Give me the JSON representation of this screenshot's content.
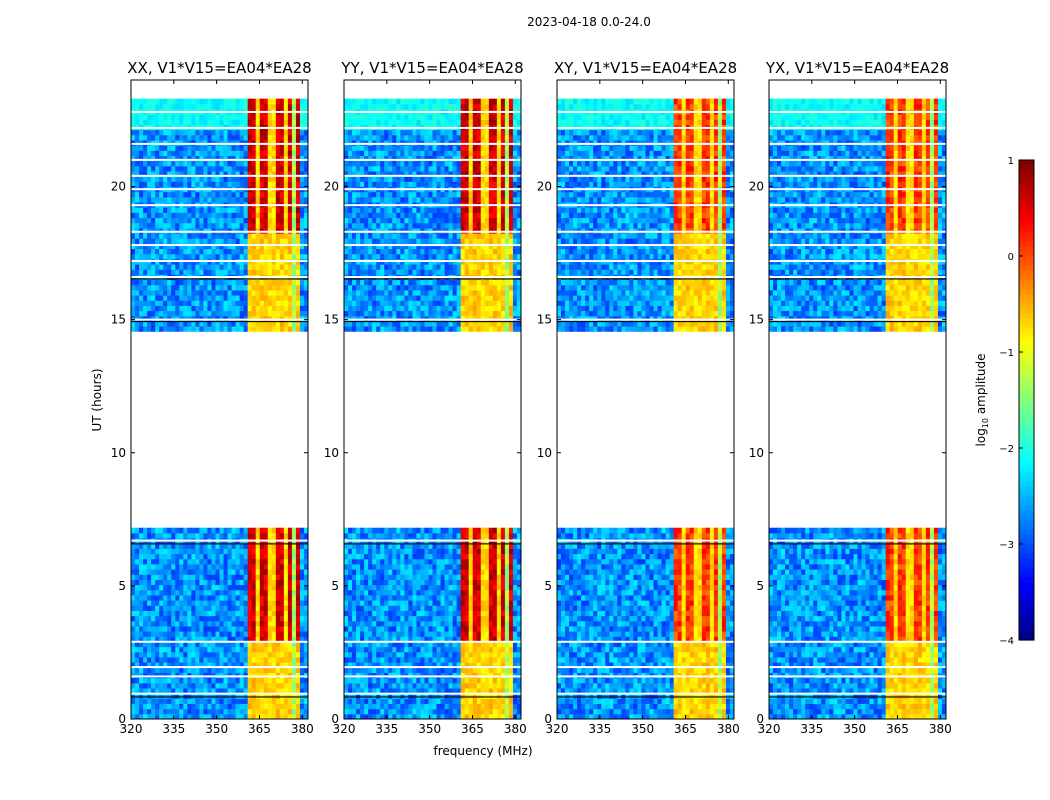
{
  "chart_data": {
    "type": "heatmap",
    "suptitle": "2023-04-18 0.0-24.0",
    "xlabel": "frequency (MHz)",
    "ylabel": "UT (hours)",
    "colorbar_label": "log",
    "colorbar_label_sub": "10",
    "colorbar_label_rest": " amplitude",
    "colorbar_range": [
      -4,
      1
    ],
    "colorbar_ticks": [
      "1",
      "0",
      "−1",
      "−2",
      "−3",
      "−4"
    ],
    "colormap": "jet",
    "x_range": [
      320,
      382
    ],
    "y_range": [
      0,
      24
    ],
    "x_ticks": [
      "320",
      "335",
      "350",
      "365",
      "380"
    ],
    "y_ticks": [
      "0",
      "5",
      "10",
      "15",
      "20"
    ],
    "data_gap_hours": [
      7.3,
      14.5
    ],
    "panels": [
      {
        "title": "XX, V1*V15=EA04*EA28",
        "pol": "XX"
      },
      {
        "title": "YY, V1*V15=EA04*EA28",
        "pol": "YY"
      },
      {
        "title": "XY, V1*V15=EA04*EA28",
        "pol": "XY"
      },
      {
        "title": "YX, V1*V15=EA04*EA28",
        "pol": "YX"
      }
    ],
    "rfi_channels_mhz": [
      362,
      367,
      372,
      377
    ],
    "flagged_rows_hours": [
      0.95,
      1.6,
      1.95,
      2.9,
      6.7,
      15.0,
      16.6,
      17.2,
      17.8,
      18.3,
      19.3,
      19.9,
      20.4,
      21.0,
      21.6,
      22.2,
      22.8
    ]
  }
}
